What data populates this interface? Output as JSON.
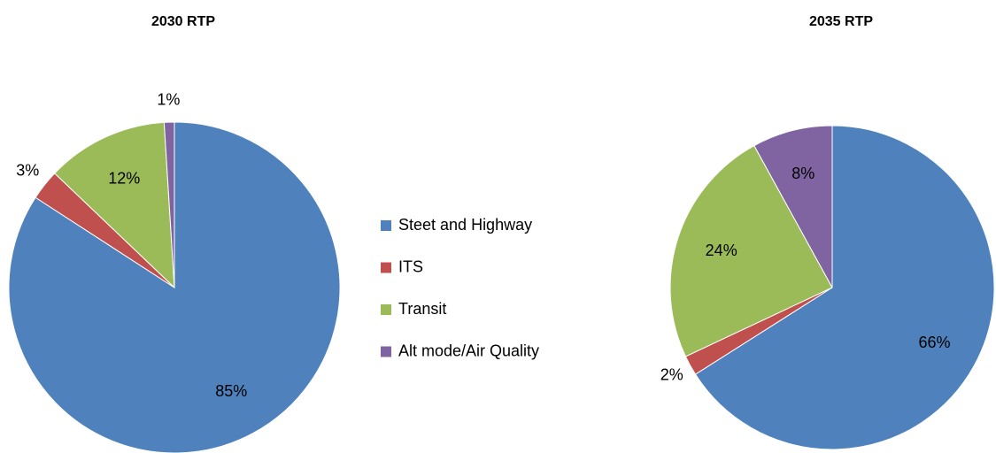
{
  "chart_data": {
    "type": "pie",
    "categories": [
      "Steet and Highway",
      "ITS",
      "Transit",
      "Alt mode/Air Quality"
    ],
    "colors": [
      "#4f81bd",
      "#c0504d",
      "#9bbb59",
      "#8064a2"
    ],
    "legend": "center",
    "series": [
      {
        "name": "2030 RTP",
        "values": [
          85,
          3,
          12,
          1
        ],
        "value_labels": [
          "85%",
          "3%",
          "12%",
          "1%"
        ]
      },
      {
        "name": "2035 RTP",
        "values": [
          66,
          2,
          24,
          8
        ],
        "value_labels": [
          "66%",
          "2%",
          "24%",
          "8%"
        ]
      }
    ]
  }
}
